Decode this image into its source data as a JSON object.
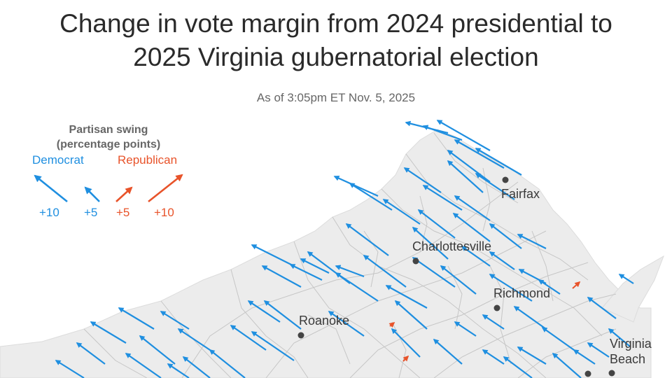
{
  "title_line1": "Change in vote margin from 2024 presidential to",
  "title_line2": "2025 Virginia gubernatorial election",
  "subtitle": "As of 3:05pm ET Nov. 5, 2025",
  "colors": {
    "democrat": "#1f8fe0",
    "republican": "#e8532a",
    "map_fill": "#ececec",
    "border": "#b5b5b5"
  },
  "legend": {
    "title_line1": "Partisan swing",
    "title_line2": "(percentage points)",
    "democrat_label": "Democrat",
    "republican_label": "Republican",
    "values": [
      "+10",
      "+5",
      "+5",
      "+10"
    ]
  },
  "cities": [
    {
      "name": "Fairfax"
    },
    {
      "name": "Charlottesville"
    },
    {
      "name": "Richmond"
    },
    {
      "name": "Roanoke"
    },
    {
      "name_line1": "Virginia",
      "name_line2": "Beach"
    }
  ],
  "map": {
    "icon": "county-swing-arrow-icon",
    "arrow_direction": "diagonal"
  }
}
